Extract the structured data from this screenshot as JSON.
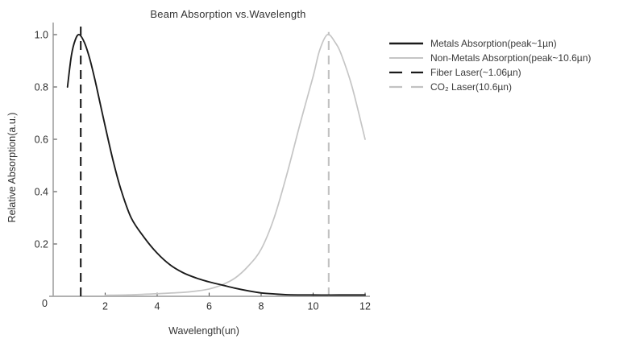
{
  "chart_data": {
    "type": "line",
    "title": "Beam Absorption vs.Wavelength",
    "xlabel": "Wavelength(un)",
    "ylabel": "Relative Absorption(a.u.)",
    "xlim": [
      0,
      12.2
    ],
    "ylim": [
      0,
      1.05
    ],
    "x_ticks": [
      2,
      4,
      6,
      8,
      10,
      12
    ],
    "y_ticks": [
      0,
      0.2,
      0.4,
      0.6,
      0.8,
      1.0
    ],
    "grid": false,
    "legend_position": "outside-upper-right",
    "axis_color": "#a6a6a6",
    "tick_color": "#4d4d4d",
    "text_color": "#2e2e2e",
    "series": [
      {
        "name": "metals-absorption",
        "label": "Metals Absorption(peak~1µn)",
        "color": "#1a1a1a",
        "style": "solid",
        "width": 1.9,
        "points": [
          [
            0.55,
            0.8
          ],
          [
            0.7,
            0.92
          ],
          [
            0.85,
            0.98
          ],
          [
            1.0,
            1.0
          ],
          [
            1.2,
            0.97
          ],
          [
            1.4,
            0.91
          ],
          [
            1.6,
            0.83
          ],
          [
            1.8,
            0.74
          ],
          [
            2.0,
            0.65
          ],
          [
            2.3,
            0.52
          ],
          [
            2.6,
            0.41
          ],
          [
            3.0,
            0.3
          ],
          [
            3.5,
            0.225
          ],
          [
            4.0,
            0.165
          ],
          [
            4.5,
            0.12
          ],
          [
            5.0,
            0.09
          ],
          [
            5.5,
            0.07
          ],
          [
            6.0,
            0.055
          ],
          [
            6.5,
            0.043
          ],
          [
            7.0,
            0.031
          ],
          [
            7.5,
            0.021
          ],
          [
            8.0,
            0.013
          ],
          [
            8.5,
            0.009
          ],
          [
            9.0,
            0.006
          ],
          [
            10.0,
            0.005
          ],
          [
            11.0,
            0.005
          ],
          [
            12.0,
            0.005
          ]
        ]
      },
      {
        "name": "non-metals-absorption",
        "label": "Non-Metals Absorption(peak~10.6µn)",
        "color": "#c5c5c5",
        "style": "solid",
        "width": 1.7,
        "points": [
          [
            2.0,
            0.004
          ],
          [
            3.0,
            0.006
          ],
          [
            4.0,
            0.01
          ],
          [
            5.0,
            0.015
          ],
          [
            5.5,
            0.02
          ],
          [
            6.0,
            0.028
          ],
          [
            6.5,
            0.044
          ],
          [
            7.0,
            0.07
          ],
          [
            7.5,
            0.115
          ],
          [
            8.0,
            0.18
          ],
          [
            8.5,
            0.3
          ],
          [
            9.0,
            0.47
          ],
          [
            9.5,
            0.66
          ],
          [
            10.0,
            0.84
          ],
          [
            10.25,
            0.94
          ],
          [
            10.55,
            1.0
          ],
          [
            10.85,
            0.97
          ],
          [
            11.1,
            0.92
          ],
          [
            11.5,
            0.8
          ],
          [
            12.0,
            0.6
          ]
        ]
      }
    ],
    "vlines": [
      {
        "name": "fiber-laser",
        "label": "Fiber Laser(~1.06µn)",
        "x": 1.06,
        "y0": 0,
        "y1": 1.04,
        "color": "#1a1a1a",
        "width": 2.1,
        "dash": "11 7"
      },
      {
        "name": "co2-laser",
        "label": "CO₂ Laser(10.6µn)",
        "x": 10.6,
        "y0": 0,
        "y1": 1.01,
        "color": "#c2c2c2",
        "width": 2.1,
        "dash": "11 7"
      }
    ],
    "legend": [
      {
        "label": "Metals Absorption(peak~1µn)",
        "color": "#1a1a1a",
        "style": "solid"
      },
      {
        "label": "Non-Metals Absorption(peak~10.6µn)",
        "color": "#c5c5c5",
        "style": "solid"
      },
      {
        "label": "Fiber Laser(~1.06µn)",
        "color": "#1a1a1a",
        "style": "dashed"
      },
      {
        "label": "CO₂ Laser(10.6µn)",
        "color": "#c2c2c2",
        "style": "dashed"
      }
    ]
  }
}
